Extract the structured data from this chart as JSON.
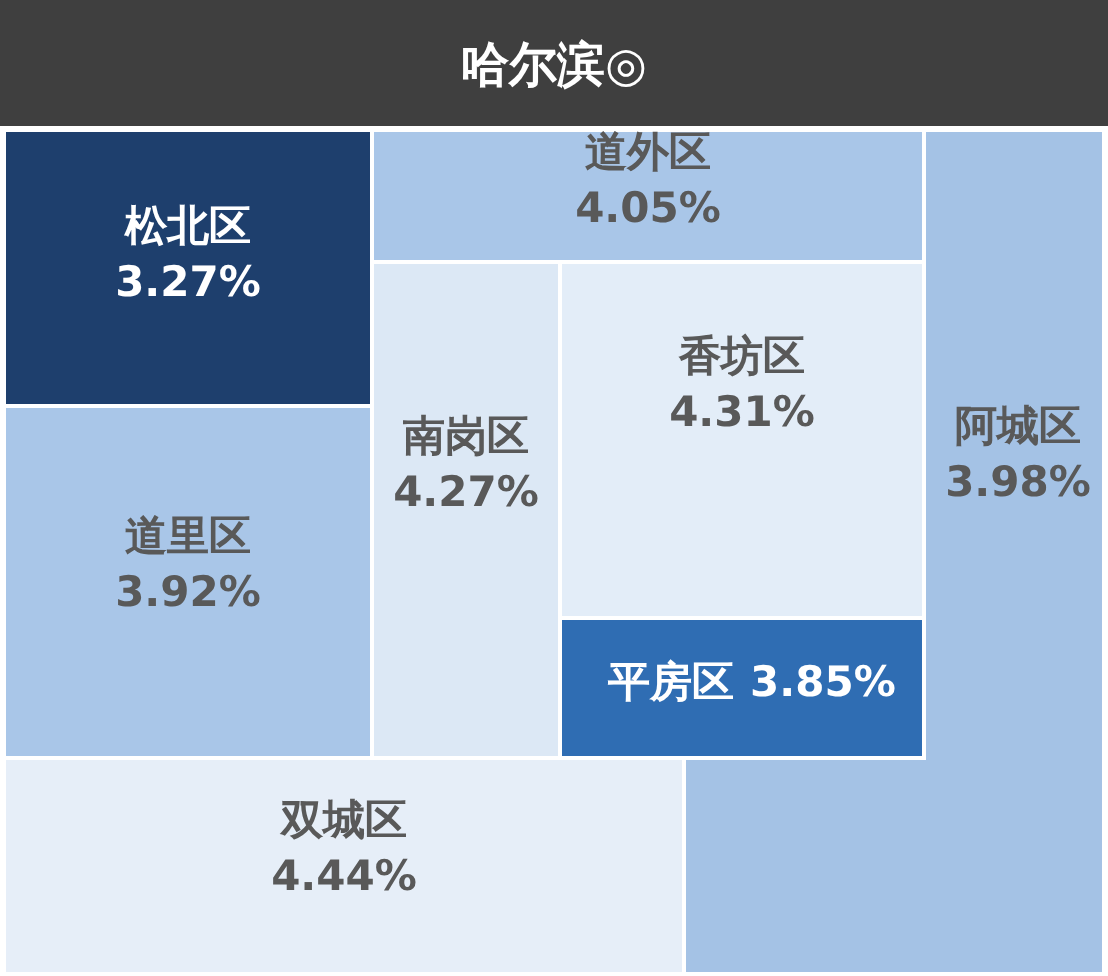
{
  "chart_data": {
    "type": "other",
    "title": "哈尔滨◎",
    "categories": [
      "松北区",
      "道外区",
      "南岗区",
      "香坊区",
      "阿城区",
      "道里区",
      "平房区",
      "双城区"
    ],
    "values": [
      3.27,
      4.05,
      4.27,
      4.31,
      3.98,
      3.92,
      3.85,
      4.44
    ],
    "value_labels": [
      "3.27%",
      "4.05%",
      "4.27%",
      "4.31%",
      "3.98%",
      "3.92%",
      "3.85%",
      "4.44%"
    ],
    "colors": [
      "#1e3f6d",
      "#a9c6e8",
      "#dce8f5",
      "#e3edf8",
      "#a4c2e5",
      "#a9c6e8",
      "#2f6db3",
      "#e6eef8"
    ]
  }
}
